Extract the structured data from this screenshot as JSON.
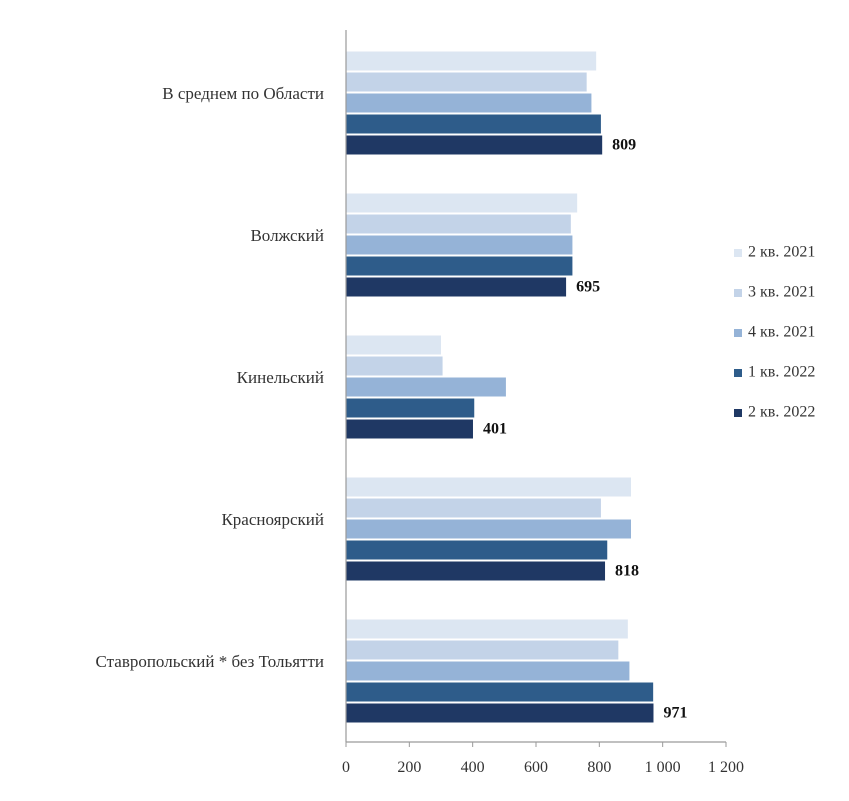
{
  "chart_data": {
    "type": "bar",
    "orientation": "horizontal",
    "categories": [
      "В среднем по Области",
      "Волжский",
      "Кинельский",
      "Красноярский",
      "Ставропольский * без Тольятти"
    ],
    "series": [
      {
        "name": "2 кв. 2021",
        "color": "#dce6f2",
        "values": [
          790,
          730,
          300,
          900,
          890
        ]
      },
      {
        "name": "3 кв. 2021",
        "color": "#c3d3e8",
        "values": [
          760,
          710,
          305,
          805,
          860
        ]
      },
      {
        "name": "4 кв. 2021",
        "color": "#95b3d7",
        "values": [
          775,
          715,
          505,
          900,
          895
        ]
      },
      {
        "name": "1 кв. 2022",
        "color": "#2e5c8a",
        "values": [
          805,
          715,
          405,
          825,
          970
        ]
      },
      {
        "name": "2 кв. 2022",
        "color": "#1f3864",
        "values": [
          809,
          695,
          401,
          818,
          971
        ]
      }
    ],
    "data_labels": [
      "809",
      "695",
      "401",
      "818",
      "971"
    ],
    "xlim": [
      0,
      1200
    ],
    "x_ticks": [
      "0",
      "200",
      "400",
      "600",
      "800",
      "1 000",
      "1 200"
    ],
    "grid": false,
    "legend": "right"
  }
}
